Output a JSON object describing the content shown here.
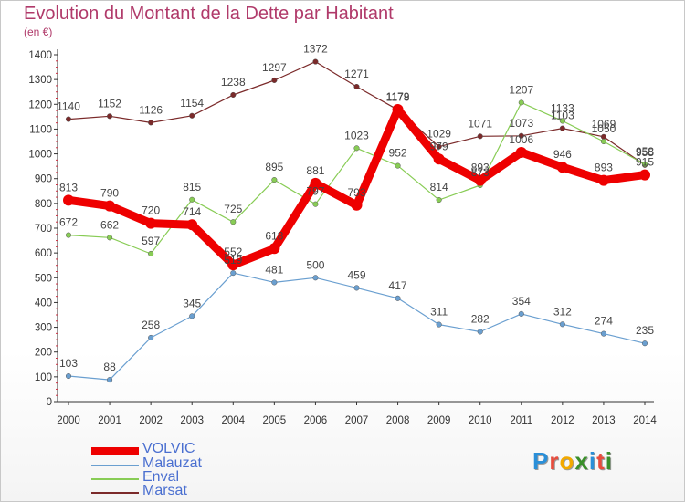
{
  "title": "Evolution du Montant de la Dette par Habitant",
  "subtitle": "(en €)",
  "logo": "ProxIti",
  "chart_data": {
    "type": "line",
    "x": [
      "2000",
      "2001",
      "2002",
      "2003",
      "2004",
      "2005",
      "2006",
      "2007",
      "2008",
      "2009",
      "2010",
      "2011",
      "2012",
      "2013",
      "2014"
    ],
    "ylim": [
      0,
      1400
    ],
    "yticks": [
      0,
      100,
      200,
      300,
      400,
      500,
      600,
      700,
      800,
      900,
      1000,
      1100,
      1200,
      1300,
      1400
    ],
    "grid": false,
    "legend_position": "bottom-left",
    "series": [
      {
        "name": "Marsat",
        "color": "#7b2a2a",
        "width": 1.2,
        "marker": 2.8,
        "values": [
          1140,
          1152,
          1126,
          1154,
          1238,
          1297,
          1372,
          1271,
          1178,
          1029,
          1071,
          1073,
          1103,
          1069,
          955
        ],
        "labels": [
          "1140",
          "1152",
          "1126",
          "1154",
          "1238",
          "1297",
          "1372",
          "1271",
          "1178",
          "1029",
          "1071",
          "1073",
          "1103",
          "1069",
          "955"
        ]
      },
      {
        "name": "Enval",
        "color": "#88cc55",
        "width": 1.2,
        "marker": 2.8,
        "values": [
          672,
          662,
          597,
          815,
          725,
          895,
          797,
          1023,
          952,
          814,
          873,
          1207,
          1133,
          1050,
          958
        ],
        "labels": [
          "672",
          "662",
          "597",
          "815",
          "725",
          "895",
          "797",
          "1023",
          "952",
          "814",
          "873",
          "1207",
          "1133",
          "1050",
          "958"
        ]
      },
      {
        "name": "Malauzat",
        "color": "#6a9fd0",
        "width": 1.2,
        "marker": 2.8,
        "values": [
          103,
          88,
          258,
          345,
          519,
          481,
          500,
          459,
          417,
          311,
          282,
          354,
          312,
          274,
          235
        ],
        "labels": [
          "103",
          "88",
          "258",
          "345",
          "519",
          "481",
          "500",
          "459",
          "417",
          "311",
          "282",
          "354",
          "312",
          "274",
          "235"
        ]
      },
      {
        "name": "VOLVIC",
        "color": "#ee0000",
        "width": 9,
        "marker": 6,
        "values": [
          813,
          790,
          720,
          714,
          552,
          618,
          881,
          793,
          1179,
          979,
          893,
          1006,
          946,
          893,
          915
        ],
        "labels": [
          "813",
          "790",
          "720",
          "714",
          "552",
          "618",
          "881",
          "793",
          "1179",
          "979",
          "893",
          "1006",
          "946",
          "893",
          "915"
        ]
      }
    ],
    "legend": [
      "VOLVIC",
      "Malauzat",
      "Enval",
      "Marsat"
    ]
  }
}
